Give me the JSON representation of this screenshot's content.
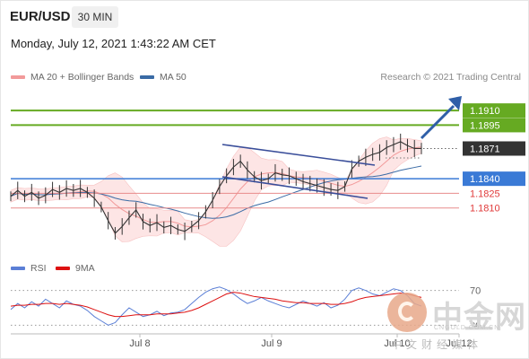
{
  "header": {
    "symbol": "EUR/USD",
    "timeframe": "30 MIN",
    "datetime": "Monday, July 12, 2021 1:43:22 AM CET"
  },
  "legend": {
    "ma20_label": "MA 20 + Bollinger Bands",
    "ma50_label": "MA 50",
    "credit": "Research © 2021 Trading Central"
  },
  "colors": {
    "ma20": "#f29a9a",
    "ma50": "#3a6ba5",
    "band_fill": "#fde1e1",
    "price_line": "#333333",
    "resistance": "#66aa22",
    "support": "#3a7ad6",
    "support_minor": "#e88b8b",
    "current_price": "#333333",
    "rsi": "#5b7fd6",
    "rsi_ma": "#dd1111",
    "arrow": "#2f5fa8",
    "channel": "#3a4e9a"
  },
  "rsi_legend": {
    "rsi_label": "RSI",
    "ma_label": "9MA"
  },
  "chart_data": {
    "type": "candlestick",
    "instrument": "EUR/USD",
    "timeframe": "30 MIN",
    "x_tick_labels": [
      "Jul 8",
      "Jul 9",
      "Jul 10",
      "Jul 12"
    ],
    "y_range": [
      1.176,
      1.1935
    ],
    "levels": [
      {
        "label": "1.1910",
        "value": 1.191,
        "kind": "resistance"
      },
      {
        "label": "1.1895",
        "value": 1.1895,
        "kind": "resistance"
      },
      {
        "label": "1.1871",
        "value": 1.1871,
        "kind": "current_price"
      },
      {
        "label": "1.1840",
        "value": 1.184,
        "kind": "support"
      },
      {
        "label": "1.1825",
        "value": 1.1825,
        "kind": "support_minor"
      },
      {
        "label": "1.1810",
        "value": 1.181,
        "kind": "support_minor"
      }
    ],
    "price_series": [
      1.1822,
      1.1828,
      1.1822,
      1.1826,
      1.182,
      1.1823,
      1.1829,
      1.1826,
      1.183,
      1.1828,
      1.183,
      1.1826,
      1.182,
      1.1811,
      1.1797,
      1.1784,
      1.1791,
      1.18,
      1.1808,
      1.1796,
      1.1792,
      1.1795,
      1.179,
      1.1792,
      1.1788,
      1.1786,
      1.1791,
      1.1797,
      1.1806,
      1.1818,
      1.1832,
      1.1843,
      1.1852,
      1.1858,
      1.1849,
      1.1842,
      1.1838,
      1.184,
      1.1846,
      1.1844,
      1.1843,
      1.184,
      1.1837,
      1.1835,
      1.1833,
      1.1831,
      1.1829,
      1.1828,
      1.1832,
      1.185,
      1.1858,
      1.1862,
      1.1865,
      1.1867,
      1.1872,
      1.1875,
      1.1878,
      1.1874,
      1.1871,
      1.1871
    ],
    "rsi": {
      "levels": [
        70,
        30
      ],
      "level_labels": [
        "70",
        "30"
      ],
      "values": [
        48,
        55,
        50,
        57,
        52,
        60,
        55,
        50,
        58,
        54,
        52,
        47,
        40,
        35,
        30,
        33,
        42,
        50,
        45,
        40,
        42,
        46,
        41,
        44,
        45,
        48,
        55,
        62,
        68,
        72,
        74,
        71,
        66,
        60,
        55,
        58,
        62,
        58,
        55,
        52,
        50,
        54,
        58,
        55,
        52,
        56,
        50,
        53,
        60,
        70,
        73,
        70,
        66,
        64,
        68,
        72,
        70,
        64,
        55,
        52
      ],
      "ma_values": [
        52,
        53,
        53,
        54,
        54,
        55,
        55,
        54,
        55,
        54,
        53,
        51,
        48,
        45,
        42,
        40,
        40,
        41,
        42,
        42,
        42,
        43,
        43,
        43,
        44,
        45,
        47,
        50,
        54,
        58,
        62,
        66,
        68,
        67,
        65,
        63,
        62,
        61,
        60,
        58,
        57,
        56,
        56,
        55,
        55,
        55,
        54,
        54,
        55,
        57,
        60,
        62,
        63,
        64,
        65,
        66,
        67,
        66,
        64,
        62
      ]
    }
  },
  "watermark": {
    "cn_title": "中金网",
    "cn_url": "CNGOLD.COM.CN",
    "cn_subtitle": "中文财经媒体"
  }
}
